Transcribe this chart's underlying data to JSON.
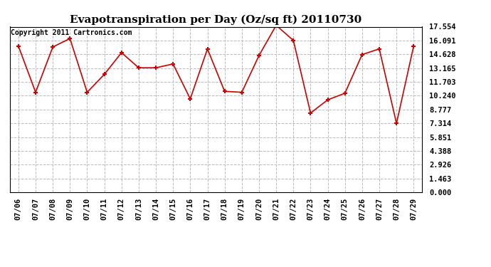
{
  "title": "Evapotranspiration per Day (Oz/sq ft) 20110730",
  "copyright": "Copyright 2011 Cartronics.com",
  "dates": [
    "07/06",
    "07/07",
    "07/08",
    "07/09",
    "07/10",
    "07/11",
    "07/12",
    "07/13",
    "07/14",
    "07/15",
    "07/16",
    "07/17",
    "07/18",
    "07/19",
    "07/20",
    "07/21",
    "07/22",
    "07/23",
    "07/24",
    "07/25",
    "07/26",
    "07/27",
    "07/28",
    "07/29"
  ],
  "values": [
    15.5,
    10.6,
    15.4,
    16.3,
    10.6,
    12.5,
    14.8,
    13.2,
    13.2,
    13.6,
    9.9,
    15.2,
    10.7,
    10.6,
    14.5,
    17.7,
    16.1,
    8.4,
    9.8,
    10.5,
    14.6,
    15.2,
    7.3,
    15.5
  ],
  "line_color": "#cc0000",
  "marker": "+",
  "marker_size": 5,
  "marker_color": "#cc0000",
  "bg_color": "#ffffff",
  "plot_bg_color": "#ffffff",
  "grid_color": "#bbbbbb",
  "ylim": [
    0,
    17.554
  ],
  "yticks": [
    0.0,
    1.463,
    2.926,
    4.388,
    5.851,
    7.314,
    8.777,
    10.24,
    11.703,
    13.165,
    14.628,
    16.091,
    17.554
  ],
  "title_fontsize": 11,
  "copyright_fontsize": 7,
  "tick_fontsize": 7.5
}
